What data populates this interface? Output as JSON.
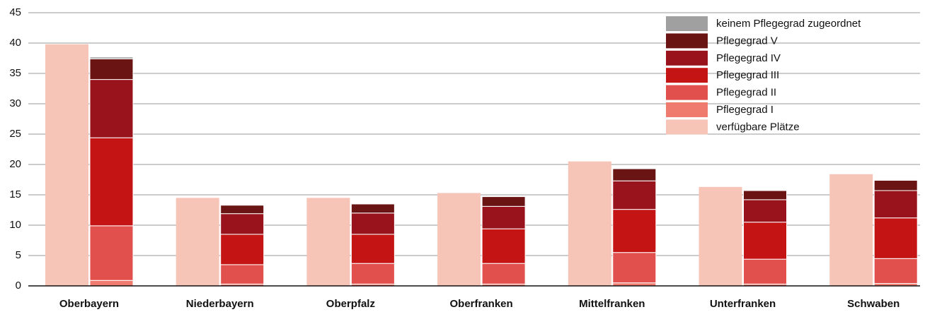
{
  "chart_data": {
    "type": "bar",
    "categories": [
      "Oberbayern",
      "Niederbayern",
      "Oberpfalz",
      "Oberfranken",
      "Mittelfranken",
      "Unterfranken",
      "Schwaben"
    ],
    "series": [
      {
        "name": "verfügbare Plätze",
        "color": "#f7c4b8",
        "values": [
          39.8,
          14.5,
          14.5,
          15.3,
          20.5,
          16.3,
          18.4
        ]
      },
      {
        "name": "Pflegegrad I",
        "color": "#ef7a6e",
        "values": [
          0.9,
          0.3,
          0.3,
          0.3,
          0.5,
          0.3,
          0.4
        ]
      },
      {
        "name": "Pflegegrad II",
        "color": "#e2504d",
        "values": [
          9.0,
          3.2,
          3.4,
          3.4,
          5.0,
          4.1,
          4.1
        ]
      },
      {
        "name": "Pflegegrad III",
        "color": "#c41414",
        "values": [
          14.5,
          5.0,
          4.8,
          5.7,
          7.1,
          6.1,
          6.7
        ]
      },
      {
        "name": "Pflegegrad IV",
        "color": "#99131c",
        "values": [
          9.6,
          3.4,
          3.5,
          3.7,
          4.7,
          3.7,
          4.5
        ]
      },
      {
        "name": "Pflegegrad V",
        "color": "#6b1414",
        "values": [
          3.4,
          1.4,
          1.5,
          1.6,
          2.0,
          1.5,
          1.7
        ]
      },
      {
        "name": "keinem Pflegegrad zugeordnet",
        "color": "#a0a0a0",
        "values": [
          0.3,
          0.1,
          0.1,
          0,
          0.1,
          0.1,
          0.1
        ]
      }
    ],
    "ylim": [
      0,
      45
    ],
    "yticks": [
      0,
      5,
      10,
      15,
      20,
      25,
      30,
      35,
      40,
      45
    ],
    "grid": true,
    "legend": "top-right"
  }
}
